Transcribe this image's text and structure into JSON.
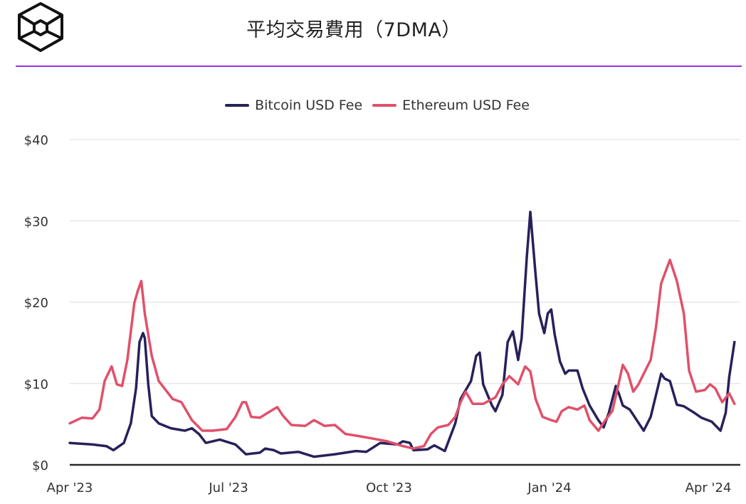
{
  "header": {
    "title": "平均交易費用（7DMA）",
    "logo_icon": "hexagon-cube-logo",
    "rule_color": "#9b30e6"
  },
  "chart_data": {
    "type": "line",
    "title": "平均交易費用（7DMA）",
    "xlabel": "",
    "ylabel": "",
    "xlim": [
      "2023-04-01",
      "2024-04-16"
    ],
    "ylim": [
      0,
      40
    ],
    "grid": "horizontal",
    "legend_position": "top-center",
    "y_ticks": [
      {
        "value": 0,
        "label": "$0"
      },
      {
        "value": 10,
        "label": "$10"
      },
      {
        "value": 20,
        "label": "$20"
      },
      {
        "value": 30,
        "label": "$30"
      },
      {
        "value": 40,
        "label": "$40"
      }
    ],
    "x_ticks": [
      {
        "value": "2023-04-01",
        "label": "Apr '23"
      },
      {
        "value": "2023-07-01",
        "label": "Jul '23"
      },
      {
        "value": "2023-10-01",
        "label": "Oct '23"
      },
      {
        "value": "2024-01-01",
        "label": "Jan '24"
      },
      {
        "value": "2024-04-01",
        "label": "Apr '24"
      }
    ],
    "series": [
      {
        "name": "Bitcoin USD Fee",
        "color": "#27215a",
        "points": [
          [
            "2023-04-01",
            2.7
          ],
          [
            "2023-04-14",
            2.5
          ],
          [
            "2023-04-22",
            2.3
          ],
          [
            "2023-04-26",
            1.8
          ],
          [
            "2023-05-02",
            2.7
          ],
          [
            "2023-05-06",
            5.1
          ],
          [
            "2023-05-09",
            9.4
          ],
          [
            "2023-05-11",
            15.1
          ],
          [
            "2023-05-13",
            16.2
          ],
          [
            "2023-05-14",
            15.6
          ],
          [
            "2023-05-16",
            9.9
          ],
          [
            "2023-05-18",
            6.0
          ],
          [
            "2023-05-22",
            5.1
          ],
          [
            "2023-05-29",
            4.5
          ],
          [
            "2023-06-06",
            4.2
          ],
          [
            "2023-06-10",
            4.5
          ],
          [
            "2023-06-14",
            3.8
          ],
          [
            "2023-06-18",
            2.7
          ],
          [
            "2023-06-26",
            3.1
          ],
          [
            "2023-07-05",
            2.5
          ],
          [
            "2023-07-11",
            1.3
          ],
          [
            "2023-07-19",
            1.5
          ],
          [
            "2023-07-22",
            2.0
          ],
          [
            "2023-07-27",
            1.8
          ],
          [
            "2023-07-31",
            1.4
          ],
          [
            "2023-08-10",
            1.6
          ],
          [
            "2023-08-19",
            1.0
          ],
          [
            "2023-08-31",
            1.3
          ],
          [
            "2023-09-12",
            1.7
          ],
          [
            "2023-09-18",
            1.6
          ],
          [
            "2023-09-26",
            2.7
          ],
          [
            "2023-10-06",
            2.5
          ],
          [
            "2023-10-09",
            2.9
          ],
          [
            "2023-10-13",
            2.7
          ],
          [
            "2023-10-15",
            1.8
          ],
          [
            "2023-10-23",
            1.9
          ],
          [
            "2023-10-27",
            2.4
          ],
          [
            "2023-11-02",
            1.7
          ],
          [
            "2023-11-08",
            5.1
          ],
          [
            "2023-11-11",
            8.1
          ],
          [
            "2023-11-14",
            9.2
          ],
          [
            "2023-11-17",
            10.3
          ],
          [
            "2023-11-20",
            13.4
          ],
          [
            "2023-11-22",
            13.8
          ],
          [
            "2023-11-24",
            9.9
          ],
          [
            "2023-11-29",
            7.3
          ],
          [
            "2023-12-01",
            6.6
          ],
          [
            "2023-12-05",
            8.6
          ],
          [
            "2023-12-08",
            15.1
          ],
          [
            "2023-12-11",
            16.4
          ],
          [
            "2023-12-14",
            12.9
          ],
          [
            "2023-12-16",
            15.6
          ],
          [
            "2023-12-19",
            25.6
          ],
          [
            "2023-12-21",
            31.1
          ],
          [
            "2023-12-24",
            23.4
          ],
          [
            "2023-12-26",
            18.6
          ],
          [
            "2023-12-29",
            16.2
          ],
          [
            "2023-12-31",
            18.6
          ],
          [
            "2024-01-02",
            19.1
          ],
          [
            "2024-01-04",
            16.0
          ],
          [
            "2024-01-07",
            12.7
          ],
          [
            "2024-01-10",
            11.2
          ],
          [
            "2024-01-12",
            11.6
          ],
          [
            "2024-01-17",
            11.6
          ],
          [
            "2024-01-20",
            9.4
          ],
          [
            "2024-01-24",
            7.3
          ],
          [
            "2024-01-29",
            5.5
          ],
          [
            "2024-02-01",
            4.6
          ],
          [
            "2024-02-04",
            6.4
          ],
          [
            "2024-02-08",
            9.7
          ],
          [
            "2024-02-10",
            8.6
          ],
          [
            "2024-02-12",
            7.3
          ],
          [
            "2024-02-16",
            6.8
          ],
          [
            "2024-02-20",
            5.5
          ],
          [
            "2024-02-24",
            4.2
          ],
          [
            "2024-02-28",
            5.9
          ],
          [
            "2024-03-05",
            11.2
          ],
          [
            "2024-03-07",
            10.6
          ],
          [
            "2024-03-10",
            10.3
          ],
          [
            "2024-03-14",
            7.4
          ],
          [
            "2024-03-18",
            7.2
          ],
          [
            "2024-03-24",
            6.4
          ],
          [
            "2024-03-28",
            5.8
          ],
          [
            "2024-04-03",
            5.3
          ],
          [
            "2024-04-08",
            4.2
          ],
          [
            "2024-04-11",
            6.4
          ],
          [
            "2024-04-13",
            10.8
          ],
          [
            "2024-04-16",
            15.1
          ]
        ]
      },
      {
        "name": "Ethereum USD Fee",
        "color": "#e0506a",
        "points": [
          [
            "2023-04-01",
            5.1
          ],
          [
            "2023-04-08",
            5.8
          ],
          [
            "2023-04-14",
            5.7
          ],
          [
            "2023-04-18",
            6.8
          ],
          [
            "2023-04-21",
            10.3
          ],
          [
            "2023-04-25",
            12.1
          ],
          [
            "2023-04-28",
            9.9
          ],
          [
            "2023-05-01",
            9.7
          ],
          [
            "2023-05-04",
            12.9
          ],
          [
            "2023-05-08",
            19.9
          ],
          [
            "2023-05-10",
            21.4
          ],
          [
            "2023-05-12",
            22.6
          ],
          [
            "2023-05-14",
            18.6
          ],
          [
            "2023-05-18",
            13.4
          ],
          [
            "2023-05-22",
            10.3
          ],
          [
            "2023-05-26",
            9.2
          ],
          [
            "2023-05-30",
            8.1
          ],
          [
            "2023-06-04",
            7.7
          ],
          [
            "2023-06-10",
            5.5
          ],
          [
            "2023-06-16",
            4.2
          ],
          [
            "2023-06-22",
            4.2
          ],
          [
            "2023-06-30",
            4.4
          ],
          [
            "2023-07-05",
            5.9
          ],
          [
            "2023-07-09",
            7.7
          ],
          [
            "2023-07-11",
            7.7
          ],
          [
            "2023-07-14",
            5.9
          ],
          [
            "2023-07-19",
            5.8
          ],
          [
            "2023-07-25",
            6.6
          ],
          [
            "2023-07-29",
            7.1
          ],
          [
            "2023-08-01",
            6.1
          ],
          [
            "2023-08-06",
            4.9
          ],
          [
            "2023-08-14",
            4.8
          ],
          [
            "2023-08-19",
            5.5
          ],
          [
            "2023-08-25",
            4.8
          ],
          [
            "2023-08-31",
            4.9
          ],
          [
            "2023-09-06",
            3.8
          ],
          [
            "2023-09-12",
            3.6
          ],
          [
            "2023-09-20",
            3.3
          ],
          [
            "2023-09-30",
            2.9
          ],
          [
            "2023-10-09",
            2.3
          ],
          [
            "2023-10-15",
            2.0
          ],
          [
            "2023-10-21",
            2.3
          ],
          [
            "2023-10-25",
            3.8
          ],
          [
            "2023-10-29",
            4.6
          ],
          [
            "2023-11-04",
            4.9
          ],
          [
            "2023-11-08",
            5.9
          ],
          [
            "2023-11-11",
            7.7
          ],
          [
            "2023-11-14",
            9.0
          ],
          [
            "2023-11-18",
            7.5
          ],
          [
            "2023-11-24",
            7.5
          ],
          [
            "2023-12-01",
            8.3
          ],
          [
            "2023-12-05",
            9.9
          ],
          [
            "2023-12-09",
            10.9
          ],
          [
            "2023-12-14",
            9.9
          ],
          [
            "2023-12-18",
            12.1
          ],
          [
            "2023-12-21",
            11.5
          ],
          [
            "2023-12-24",
            8.1
          ],
          [
            "2023-12-28",
            5.9
          ],
          [
            "2024-01-02",
            5.5
          ],
          [
            "2024-01-05",
            5.3
          ],
          [
            "2024-01-08",
            6.6
          ],
          [
            "2024-01-12",
            7.1
          ],
          [
            "2024-01-17",
            6.8
          ],
          [
            "2024-01-21",
            7.3
          ],
          [
            "2024-01-24",
            5.5
          ],
          [
            "2024-01-29",
            4.2
          ],
          [
            "2024-02-02",
            5.5
          ],
          [
            "2024-02-06",
            6.6
          ],
          [
            "2024-02-09",
            9.4
          ],
          [
            "2024-02-12",
            12.3
          ],
          [
            "2024-02-15",
            11.2
          ],
          [
            "2024-02-18",
            9.0
          ],
          [
            "2024-02-21",
            9.9
          ],
          [
            "2024-02-24",
            11.2
          ],
          [
            "2024-02-28",
            12.9
          ],
          [
            "2024-03-02",
            16.9
          ],
          [
            "2024-03-05",
            22.3
          ],
          [
            "2024-03-10",
            25.2
          ],
          [
            "2024-03-14",
            22.6
          ],
          [
            "2024-03-18",
            18.6
          ],
          [
            "2024-03-21",
            11.6
          ],
          [
            "2024-03-25",
            9.0
          ],
          [
            "2024-03-30",
            9.2
          ],
          [
            "2024-04-02",
            9.9
          ],
          [
            "2024-04-05",
            9.4
          ],
          [
            "2024-04-09",
            7.7
          ],
          [
            "2024-04-13",
            8.8
          ],
          [
            "2024-04-16",
            7.5
          ]
        ]
      }
    ]
  }
}
